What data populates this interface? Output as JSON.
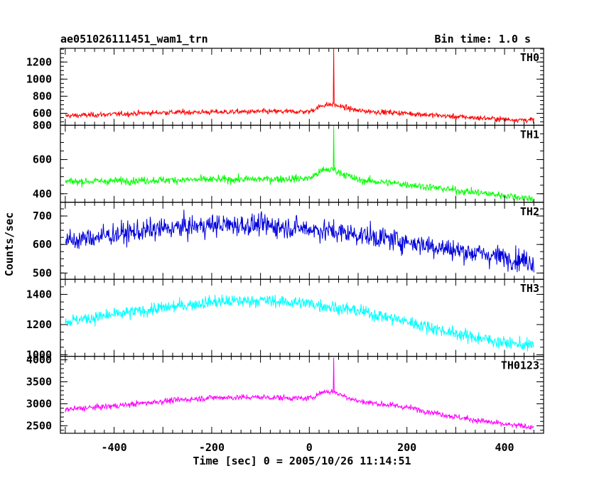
{
  "header": {
    "title": "ae051026111451_wam1_trn",
    "bin_time": "Bin time: 1.0 s"
  },
  "chart_data": {
    "type": "line",
    "title": "ae051026111451_wam1_trn",
    "subtitle": "Bin time: 1.0 s",
    "xlabel": "Time [sec] 0 = 2005/10/26 11:14:51",
    "ylabel": "Counts/sec",
    "xlim": [
      -510,
      480
    ],
    "x_ticks": [
      -400,
      -200,
      0,
      200,
      400
    ],
    "x_range": [
      -500,
      460
    ],
    "grid": false,
    "legend": "none",
    "panels": [
      {
        "name": "TH0",
        "color": "#ff0000",
        "ylim": [
          460,
          1360
        ],
        "y_ticks": [
          600,
          800,
          1000,
          1200
        ],
        "noise": 30,
        "spike_x": 50,
        "spike_peak": 1360,
        "trend": [
          [
            -500,
            570
          ],
          [
            -300,
            610
          ],
          [
            -100,
            620
          ],
          [
            0,
            620
          ],
          [
            30,
            700
          ],
          [
            50,
            700
          ],
          [
            100,
            630
          ],
          [
            200,
            600
          ],
          [
            300,
            560
          ],
          [
            400,
            530
          ],
          [
            460,
            520
          ]
        ]
      },
      {
        "name": "TH1",
        "color": "#00ff00",
        "ylim": [
          350,
          800
        ],
        "y_ticks": [
          400,
          600,
          800
        ],
        "noise": 22,
        "spike_x": 50,
        "spike_peak": 800,
        "trend": [
          [
            -500,
            470
          ],
          [
            -300,
            480
          ],
          [
            -100,
            485
          ],
          [
            0,
            490
          ],
          [
            30,
            540
          ],
          [
            50,
            540
          ],
          [
            100,
            480
          ],
          [
            200,
            455
          ],
          [
            300,
            420
          ],
          [
            400,
            390
          ],
          [
            460,
            370
          ]
        ]
      },
      {
        "name": "TH2",
        "color": "#0000dd",
        "ylim": [
          478,
          748
        ],
        "y_ticks": [
          500,
          600,
          700
        ],
        "noise": 38,
        "spike_x": null,
        "spike_peak": null,
        "trend": [
          [
            -500,
            610
          ],
          [
            -400,
            635
          ],
          [
            -300,
            655
          ],
          [
            -200,
            668
          ],
          [
            -100,
            668
          ],
          [
            0,
            655
          ],
          [
            100,
            635
          ],
          [
            200,
            610
          ],
          [
            300,
            580
          ],
          [
            400,
            555
          ],
          [
            460,
            540
          ]
        ]
      },
      {
        "name": "TH3",
        "color": "#00ffff",
        "ylim": [
          990,
          1500
        ],
        "y_ticks": [
          1000,
          1200,
          1400
        ],
        "noise": 42,
        "spike_x": null,
        "spike_peak": null,
        "trend": [
          [
            -500,
            1220
          ],
          [
            -400,
            1265
          ],
          [
            -300,
            1310
          ],
          [
            -200,
            1350
          ],
          [
            -100,
            1360
          ],
          [
            0,
            1340
          ],
          [
            100,
            1290
          ],
          [
            200,
            1220
          ],
          [
            300,
            1140
          ],
          [
            400,
            1080
          ],
          [
            460,
            1060
          ]
        ]
      },
      {
        "name": "TH0123",
        "color": "#ff00ff",
        "ylim": [
          2330,
          4080
        ],
        "y_ticks": [
          2500,
          3000,
          3500,
          4000
        ],
        "noise": 65,
        "spike_x": 50,
        "spike_peak": 4050,
        "trend": [
          [
            -500,
            2870
          ],
          [
            -400,
            2950
          ],
          [
            -300,
            3060
          ],
          [
            -200,
            3140
          ],
          [
            -100,
            3150
          ],
          [
            0,
            3120
          ],
          [
            30,
            3280
          ],
          [
            50,
            3270
          ],
          [
            100,
            3060
          ],
          [
            200,
            2920
          ],
          [
            300,
            2700
          ],
          [
            400,
            2530
          ],
          [
            460,
            2470
          ]
        ]
      }
    ]
  }
}
